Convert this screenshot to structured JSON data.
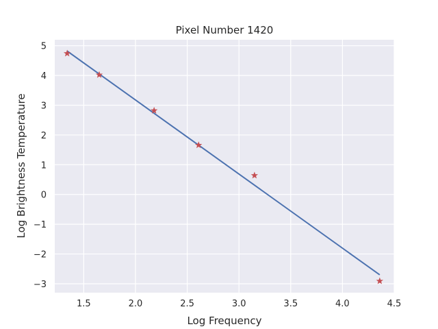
{
  "chart_data": {
    "type": "scatter",
    "title": "Pixel Number 1420",
    "xlabel": "Log Frequency",
    "ylabel": "Log Brightness Temperature",
    "xlim": [
      1.22,
      4.5
    ],
    "ylim": [
      -3.3,
      5.2
    ],
    "xticks": [
      1.5,
      2.0,
      2.5,
      3.0,
      3.5,
      4.0,
      4.5
    ],
    "xtick_labels": [
      "1.5",
      "2.0",
      "2.5",
      "3.0",
      "3.5",
      "4.0",
      "4.5"
    ],
    "yticks": [
      -3,
      -2,
      -1,
      0,
      1,
      2,
      3,
      4,
      5
    ],
    "ytick_labels": [
      "−3",
      "−2",
      "−1",
      "0",
      "1",
      "2",
      "3",
      "4",
      "5"
    ],
    "grid": true,
    "background_color": "#eaeaf2",
    "series": [
      {
        "kind": "marker",
        "marker": "star",
        "color": "#c44e52",
        "x": [
          1.34,
          1.65,
          2.18,
          2.61,
          3.15,
          4.36
        ],
        "y": [
          4.74,
          4.02,
          2.82,
          1.66,
          0.64,
          -2.91
        ]
      },
      {
        "kind": "line",
        "color": "#4c72b0",
        "x": [
          1.34,
          4.36
        ],
        "y": [
          4.82,
          -2.7
        ]
      }
    ]
  }
}
